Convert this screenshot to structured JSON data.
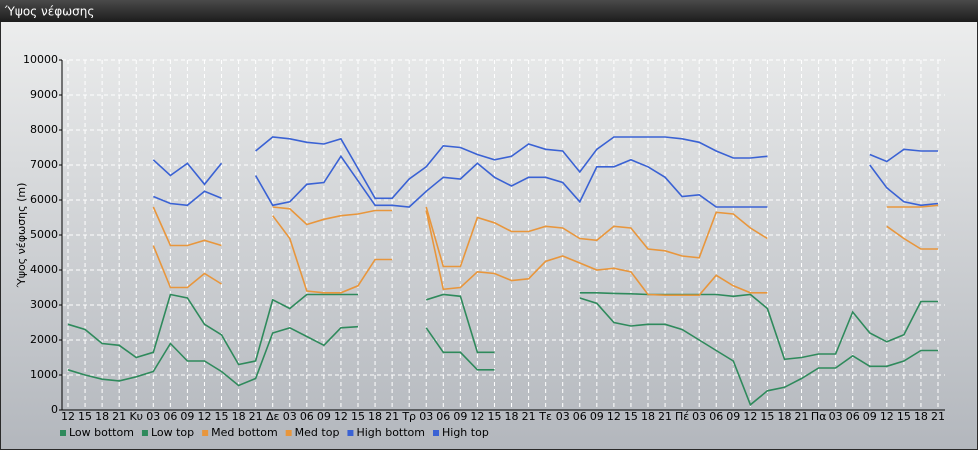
{
  "chart_data": {
    "type": "line",
    "title": "Ύψος νέφωσης",
    "y_label": "Ύψος νέφωσης (m)",
    "categories": [
      "12",
      "15",
      "18",
      "21",
      "Κυ",
      "03",
      "06",
      "09",
      "12",
      "15",
      "18",
      "21",
      "Δε",
      "03",
      "06",
      "09",
      "12",
      "15",
      "18",
      "21",
      "Τρ",
      "03",
      "06",
      "09",
      "12",
      "15",
      "18",
      "21",
      "Τε",
      "03",
      "06",
      "09",
      "12",
      "15",
      "18",
      "21",
      "Πέ",
      "03",
      "06",
      "09",
      "12",
      "15",
      "18",
      "21",
      "Πα",
      "03",
      "06",
      "09",
      "12",
      "15",
      "18",
      "21"
    ],
    "ylim": [
      0,
      10000
    ],
    "yticks": [
      0,
      1000,
      2000,
      3000,
      4000,
      5000,
      6000,
      7000,
      8000,
      9000,
      10000
    ],
    "grid": true,
    "legend": "bottom-left",
    "series": [
      {
        "name": "Low bottom",
        "color": "#2f8a5c",
        "values": [
          1150,
          1000,
          880,
          830,
          950,
          1100,
          1900,
          1400,
          1400,
          1100,
          700,
          900,
          2200,
          2350,
          2100,
          1850,
          2350,
          2380,
          null,
          null,
          null,
          2350,
          1650,
          1650,
          1150,
          1150,
          null,
          null,
          null,
          null,
          3200,
          3050,
          2500,
          2400,
          2450,
          2450,
          2300,
          2000,
          1700,
          1400,
          150,
          550,
          650,
          900,
          1200,
          1200,
          1550,
          1250,
          1250,
          1400,
          1700,
          1700
        ]
      },
      {
        "name": "Low top",
        "color": "#2f8a5c",
        "values": [
          2450,
          2300,
          1900,
          1850,
          1500,
          1650,
          3300,
          3200,
          2450,
          2150,
          1300,
          1400,
          3150,
          2900,
          3300,
          3300,
          3300,
          3300,
          null,
          null,
          null,
          3150,
          3300,
          3250,
          1650,
          1650,
          null,
          null,
          null,
          null,
          3350,
          3350,
          3330,
          3320,
          3300,
          3300,
          3300,
          3300,
          3300,
          3250,
          3300,
          2900,
          1450,
          1500,
          1600,
          1600,
          2800,
          2200,
          1950,
          2150,
          3100,
          3100
        ]
      },
      {
        "name": "Med bottom",
        "color": "#e8963c",
        "values": [
          null,
          null,
          null,
          null,
          null,
          4700,
          3500,
          3500,
          3900,
          3600,
          null,
          null,
          5550,
          4900,
          3400,
          3350,
          3350,
          3550,
          4300,
          4300,
          null,
          5700,
          3450,
          3500,
          3950,
          3900,
          3700,
          3750,
          4250,
          4400,
          4200,
          4000,
          4050,
          3950,
          3300,
          3280,
          3280,
          3280,
          3850,
          3550,
          3350,
          3350,
          null,
          null,
          null,
          null,
          null,
          null,
          5250,
          4900,
          4600,
          4600
        ]
      },
      {
        "name": "Med top",
        "color": "#e8963c",
        "values": [
          null,
          null,
          null,
          null,
          null,
          5800,
          4700,
          4700,
          4850,
          4700,
          null,
          null,
          5800,
          5750,
          5300,
          5450,
          5550,
          5600,
          5700,
          5700,
          null,
          5800,
          4100,
          4100,
          5500,
          5350,
          5100,
          5100,
          5250,
          5200,
          4900,
          4850,
          5250,
          5200,
          4600,
          4550,
          4400,
          4350,
          5650,
          5600,
          5200,
          4900,
          null,
          null,
          null,
          null,
          null,
          null,
          5800,
          5800,
          5800,
          5850
        ]
      },
      {
        "name": "High bottom",
        "color": "#3a62d4",
        "values": [
          null,
          null,
          null,
          null,
          null,
          6100,
          5900,
          5850,
          6250,
          6050,
          null,
          6700,
          5850,
          5950,
          6450,
          6500,
          7250,
          6550,
          5850,
          5850,
          5800,
          6250,
          6650,
          6600,
          7050,
          6650,
          6400,
          6650,
          6650,
          6500,
          5950,
          6950,
          6950,
          7150,
          6950,
          6650,
          6100,
          6150,
          5800,
          5800,
          5800,
          5800,
          null,
          null,
          null,
          null,
          null,
          7000,
          6350,
          5950,
          5850,
          5900
        ]
      },
      {
        "name": "High top",
        "color": "#3a62d4",
        "values": [
          null,
          null,
          null,
          null,
          null,
          7150,
          6700,
          7050,
          6450,
          7050,
          null,
          7400,
          7800,
          7750,
          7650,
          7600,
          7750,
          6900,
          6050,
          6050,
          6600,
          6950,
          7550,
          7500,
          7300,
          7150,
          7250,
          7600,
          7450,
          7400,
          6800,
          7450,
          7800,
          7800,
          7800,
          7800,
          7750,
          7650,
          7400,
          7200,
          7200,
          7250,
          null,
          null,
          null,
          null,
          null,
          7300,
          7100,
          7450,
          7400,
          7400
        ]
      }
    ]
  }
}
